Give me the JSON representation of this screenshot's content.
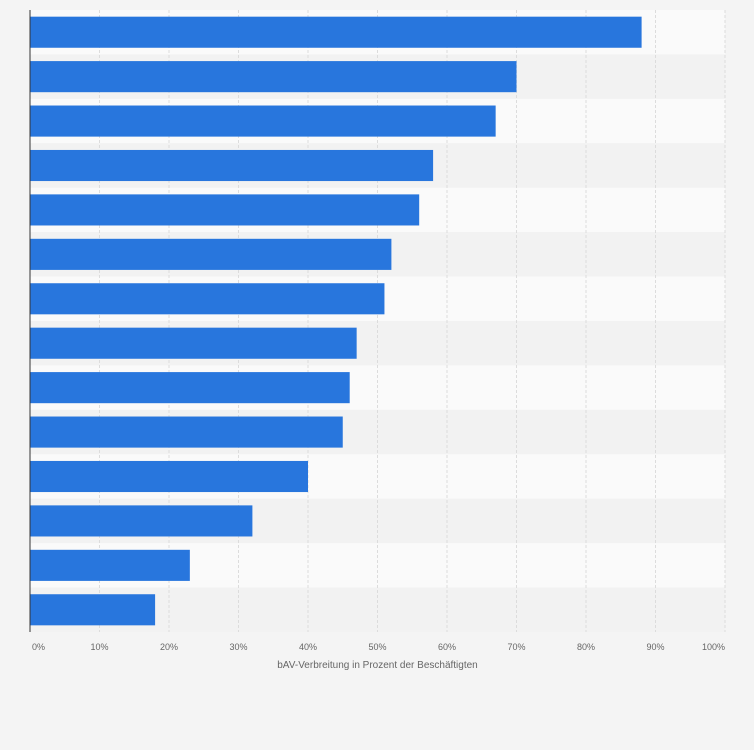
{
  "chart_data": {
    "type": "bar",
    "orientation": "horizontal",
    "categories": [
      "",
      "",
      "",
      "",
      "",
      "",
      "",
      "",
      "",
      "",
      "",
      "",
      "",
      ""
    ],
    "values": [
      88,
      70,
      67,
      58,
      56,
      52,
      51,
      47,
      46,
      45,
      40,
      32,
      23,
      18
    ],
    "xlabel": "bAV-Verbreitung in Prozent der Beschäftigten",
    "ylabel": "",
    "xlim": [
      0,
      100
    ],
    "x_ticks": [
      "0%",
      "10%",
      "20%",
      "30%",
      "40%",
      "50%",
      "60%",
      "70%",
      "80%",
      "90%",
      "100%"
    ],
    "grid": true,
    "legend": "none",
    "colors": {
      "bar": "#2876dd",
      "background": "#f4f4f4",
      "band_light": "#fafafa",
      "band_dark": "#f2f2f2",
      "grid": "#dcdcdc",
      "axis": "#333333"
    }
  }
}
